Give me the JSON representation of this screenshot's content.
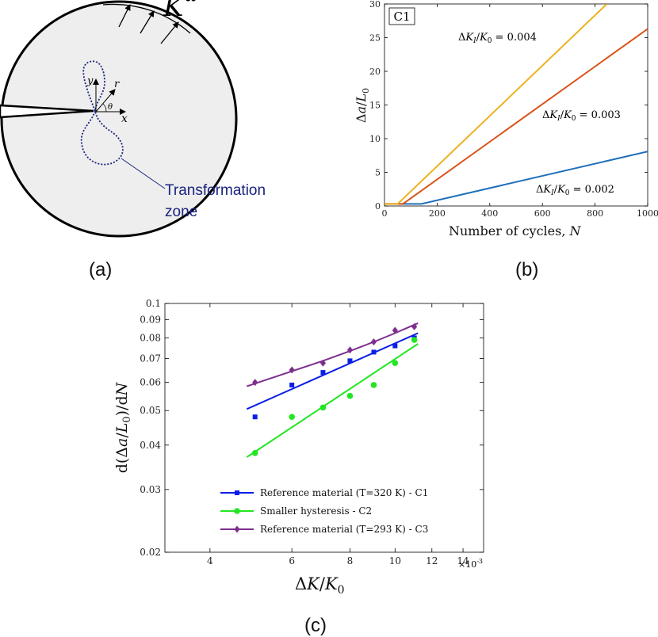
{
  "colors": {
    "blue_line": "#1f6fb8",
    "red_line": "#d95319",
    "yellow_line": "#edb120",
    "c1": "#0a1ee6",
    "c2": "#22e622",
    "c3": "#7e2f8e",
    "zone": "#1a237e",
    "disk_fill": "#eeeeee"
  },
  "panel_a": {
    "label": "(a)",
    "k_label": "K",
    "k_sup": "∞",
    "y_label": "y",
    "x_label": "x",
    "r_label": "r",
    "theta_label": "θ",
    "zone_label_line1": "Transformation",
    "zone_label_line2": "zone"
  },
  "panel_b": {
    "label": "(b)",
    "tag": "C1",
    "chart_data": {
      "type": "line",
      "xlabel": "Number of cycles, N",
      "ylabel": "Δa/L₀",
      "xlim": [
        0,
        1000
      ],
      "ylim": [
        0,
        30
      ],
      "xticks": [
        0,
        200,
        400,
        600,
        800,
        1000
      ],
      "yticks": [
        0,
        5,
        10,
        15,
        20,
        25,
        30
      ],
      "grid": false,
      "series": [
        {
          "name": "ΔK_I/K_0 = 0.002",
          "color_key": "blue_line",
          "points": [
            [
              0,
              0.3
            ],
            [
              140,
              0.3
            ],
            [
              1000,
              8.1
            ]
          ]
        },
        {
          "name": "ΔK_I/K_0 = 0.003",
          "color_key": "red_line",
          "points": [
            [
              0,
              0.3
            ],
            [
              70,
              0.3
            ],
            [
              1000,
              26.3
            ]
          ]
        },
        {
          "name": "ΔK_I/K_0 = 0.004",
          "color_key": "yellow_line",
          "points": [
            [
              0,
              0.3
            ],
            [
              50,
              0.3
            ],
            [
              845,
              30
            ]
          ]
        }
      ],
      "annotations": [
        {
          "text": "ΔK_I/K_0 = 0.004"
        },
        {
          "text": "ΔK_I/K_0 = 0.003"
        },
        {
          "text": "ΔK_I/K_0 = 0.002"
        }
      ]
    }
  },
  "panel_c": {
    "label": "(c)",
    "chart_data": {
      "type": "scatter",
      "xscale": "log",
      "yscale": "log",
      "xlabel": "ΔK/K₀",
      "ylabel": "d(Δa/L₀)/dN",
      "x_multiplier_label": "×10",
      "x_multiplier_exp": "-3",
      "xlim": [
        3.2,
        15.5
      ],
      "ylim": [
        0.02,
        0.1
      ],
      "xticks": [
        4,
        6,
        8,
        10,
        12,
        14
      ],
      "xtick_labels": [
        "4",
        "6",
        "8",
        "10",
        "12",
        "14"
      ],
      "yticks": [
        0.02,
        0.03,
        0.04,
        0.05,
        0.06,
        0.07,
        0.08,
        0.09,
        0.1
      ],
      "ytick_labels": [
        "0.02",
        "0.03",
        "0.04",
        "0.05",
        "0.06",
        "0.07",
        "0.08",
        "0.09",
        "0.1"
      ],
      "grid": false,
      "legend_placement": "bottom-left",
      "series": [
        {
          "name": "Reference material (T=320 K) - C1",
          "color_key": "c1",
          "marker": "square",
          "x": [
            5,
            6,
            7,
            8,
            9,
            10,
            11
          ],
          "y": [
            0.048,
            0.059,
            0.064,
            0.069,
            0.073,
            0.076,
            0.08
          ],
          "fit": [
            [
              4.8,
              0.0505
            ],
            [
              11.2,
              0.0825
            ]
          ]
        },
        {
          "name": "Smaller hysteresis - C2",
          "color_key": "c2",
          "marker": "circle",
          "x": [
            5,
            6,
            7,
            8,
            9,
            10,
            11
          ],
          "y": [
            0.038,
            0.048,
            0.051,
            0.055,
            0.059,
            0.068,
            0.079
          ],
          "fit": [
            [
              4.8,
              0.037
            ],
            [
              11.2,
              0.077
            ]
          ]
        },
        {
          "name": "Reference material (T=293 K) - C3",
          "color_key": "c3",
          "marker": "diamond",
          "x": [
            5,
            6,
            7,
            8,
            9,
            10,
            11
          ],
          "y": [
            0.06,
            0.065,
            0.068,
            0.074,
            0.078,
            0.084,
            0.086
          ],
          "fit": [
            [
              4.8,
              0.0585
            ],
            [
              6,
              0.0645
            ],
            [
              7,
              0.069
            ],
            [
              8,
              0.0735
            ],
            [
              9,
              0.078
            ],
            [
              10,
              0.0825
            ],
            [
              11.2,
              0.088
            ]
          ]
        }
      ]
    }
  }
}
